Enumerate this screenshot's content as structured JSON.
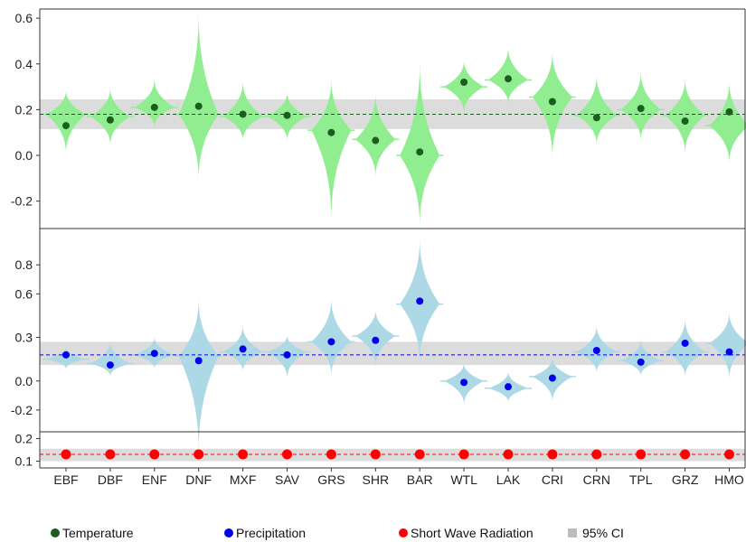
{
  "chart_data": {
    "type": "violin",
    "categories": [
      "EBF",
      "DBF",
      "ENF",
      "DNF",
      "MXF",
      "SAV",
      "GRS",
      "SHR",
      "BAR",
      "WTL",
      "LAK",
      "CRI",
      "CRN",
      "TPL",
      "GRZ",
      "HMO"
    ],
    "panels": [
      {
        "name": "Temperature",
        "color": "#1b5e20",
        "violin_color": "#90ee90",
        "ylim": [
          -0.32,
          0.64
        ],
        "yticks": [
          0.6,
          0.4,
          0.2,
          0.0,
          -0.2
        ],
        "ytick_labels": [
          "0.6",
          "0.4",
          "0.2",
          "0.0",
          "-0.2"
        ],
        "mean_line": 0.18,
        "ci": [
          0.115,
          0.245
        ],
        "points": [
          0.13,
          0.155,
          0.21,
          0.215,
          0.18,
          0.175,
          0.1,
          0.065,
          0.015,
          0.32,
          0.335,
          0.235,
          0.165,
          0.205,
          0.15,
          0.19
        ],
        "medians": [
          0.18,
          0.17,
          0.21,
          0.18,
          0.17,
          0.17,
          0.11,
          0.07,
          0.0,
          0.3,
          0.33,
          0.255,
          0.175,
          0.2,
          0.175,
          0.13
        ],
        "ranges": [
          [
            0.0,
            0.29
          ],
          [
            0.04,
            0.3
          ],
          [
            0.12,
            0.34
          ],
          [
            -0.12,
            0.64
          ],
          [
            0.06,
            0.33
          ],
          [
            0.06,
            0.28
          ],
          [
            -0.3,
            0.34
          ],
          [
            -0.1,
            0.28
          ],
          [
            -0.32,
            0.42
          ],
          [
            0.18,
            0.42
          ],
          [
            0.22,
            0.48
          ],
          [
            -0.02,
            0.46
          ],
          [
            0.04,
            0.36
          ],
          [
            0.06,
            0.37
          ],
          [
            0.0,
            0.34
          ],
          [
            -0.04,
            0.33
          ]
        ]
      },
      {
        "name": "Precipitation",
        "color": "#0000ee",
        "violin_color": "#add8e6",
        "ylim": [
          -0.35,
          1.05
        ],
        "yticks": [
          0.8,
          0.6,
          0.3,
          0.0,
          -0.2
        ],
        "ytick_labels": [
          "0.8",
          "0.6",
          "0.3",
          "0.0",
          "-0.2"
        ],
        "mean_line": 0.18,
        "ci": [
          0.11,
          0.27
        ],
        "points": [
          0.18,
          0.11,
          0.19,
          0.14,
          0.22,
          0.18,
          0.27,
          0.28,
          0.55,
          -0.01,
          -0.04,
          0.02,
          0.21,
          0.13,
          0.26,
          0.2
        ],
        "medians": [
          0.15,
          0.12,
          0.18,
          0.17,
          0.2,
          0.2,
          0.27,
          0.31,
          0.53,
          0.0,
          -0.05,
          0.03,
          0.2,
          0.14,
          0.2,
          0.26
        ],
        "ranges": [
          [
            0.08,
            0.24
          ],
          [
            0.03,
            0.28
          ],
          [
            0.08,
            0.31
          ],
          [
            -0.52,
            0.58
          ],
          [
            0.06,
            0.39
          ],
          [
            0.01,
            0.32
          ],
          [
            0.03,
            0.58
          ],
          [
            0.09,
            0.5
          ],
          [
            0.1,
            1.0
          ],
          [
            -0.17,
            0.13
          ],
          [
            -0.15,
            0.07
          ],
          [
            -0.15,
            0.17
          ],
          [
            0.05,
            0.39
          ],
          [
            0.03,
            0.29
          ],
          [
            0.02,
            0.44
          ],
          [
            0.0,
            0.48
          ]
        ]
      },
      {
        "name": "Short Wave Radiation",
        "color": "#ff0000",
        "ylim": [
          0.07,
          0.23
        ],
        "yticks": [
          0.2,
          0.1
        ],
        "ytick_labels": [
          "0.2",
          "0.1"
        ],
        "mean_line": 0.13,
        "ci": [
          0.1,
          0.155
        ],
        "points": [
          0.13,
          0.13,
          0.13,
          0.13,
          0.13,
          0.13,
          0.13,
          0.13,
          0.13,
          0.13,
          0.13,
          0.13,
          0.13,
          0.13,
          0.13,
          0.13
        ]
      }
    ]
  },
  "legend": [
    {
      "label": "Temperature",
      "color": "#1b5e20",
      "shape": "dot"
    },
    {
      "label": "Precipitation",
      "color": "#0000ee",
      "shape": "dot"
    },
    {
      "label": "Short Wave Radiation",
      "color": "#ff0000",
      "shape": "dot"
    },
    {
      "label": "95% CI",
      "color": "#bdbdbd",
      "shape": "square"
    }
  ]
}
